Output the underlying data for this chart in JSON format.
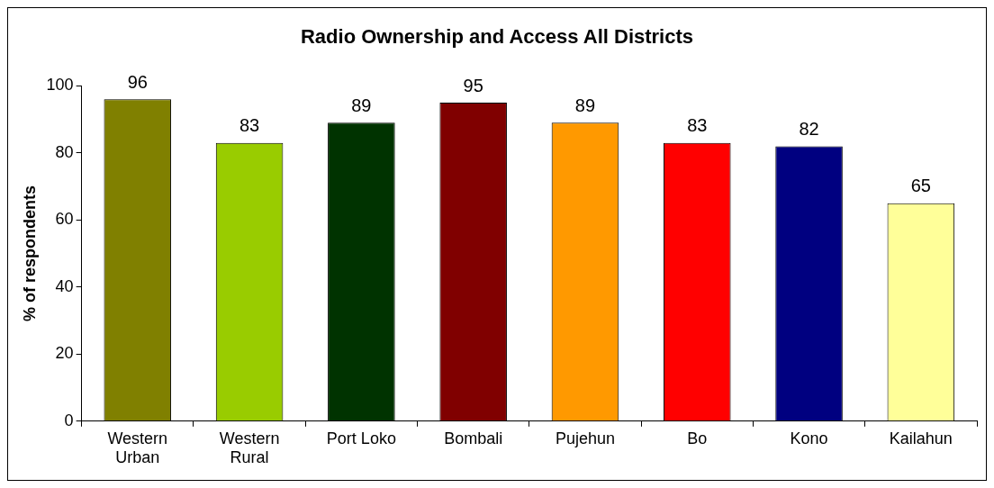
{
  "chart_data": {
    "type": "bar",
    "title": "Radio Ownership and Access All Districts",
    "ylabel": "% of respondents",
    "categories": [
      "Western Urban",
      "Western Rural",
      "Port Loko",
      "Bombali",
      "Pujehun",
      "Bo",
      "Kono",
      "Kailahun"
    ],
    "values": [
      96,
      83,
      89,
      95,
      89,
      83,
      82,
      65
    ],
    "colors": [
      "#808000",
      "#99cc00",
      "#003300",
      "#800000",
      "#ff9900",
      "#ff0000",
      "#000080",
      "#ffff99"
    ],
    "ylim": [
      0,
      100
    ],
    "yticks": [
      0,
      20,
      40,
      60,
      80,
      100
    ],
    "grid": false,
    "legend": false,
    "data_labels": true
  }
}
